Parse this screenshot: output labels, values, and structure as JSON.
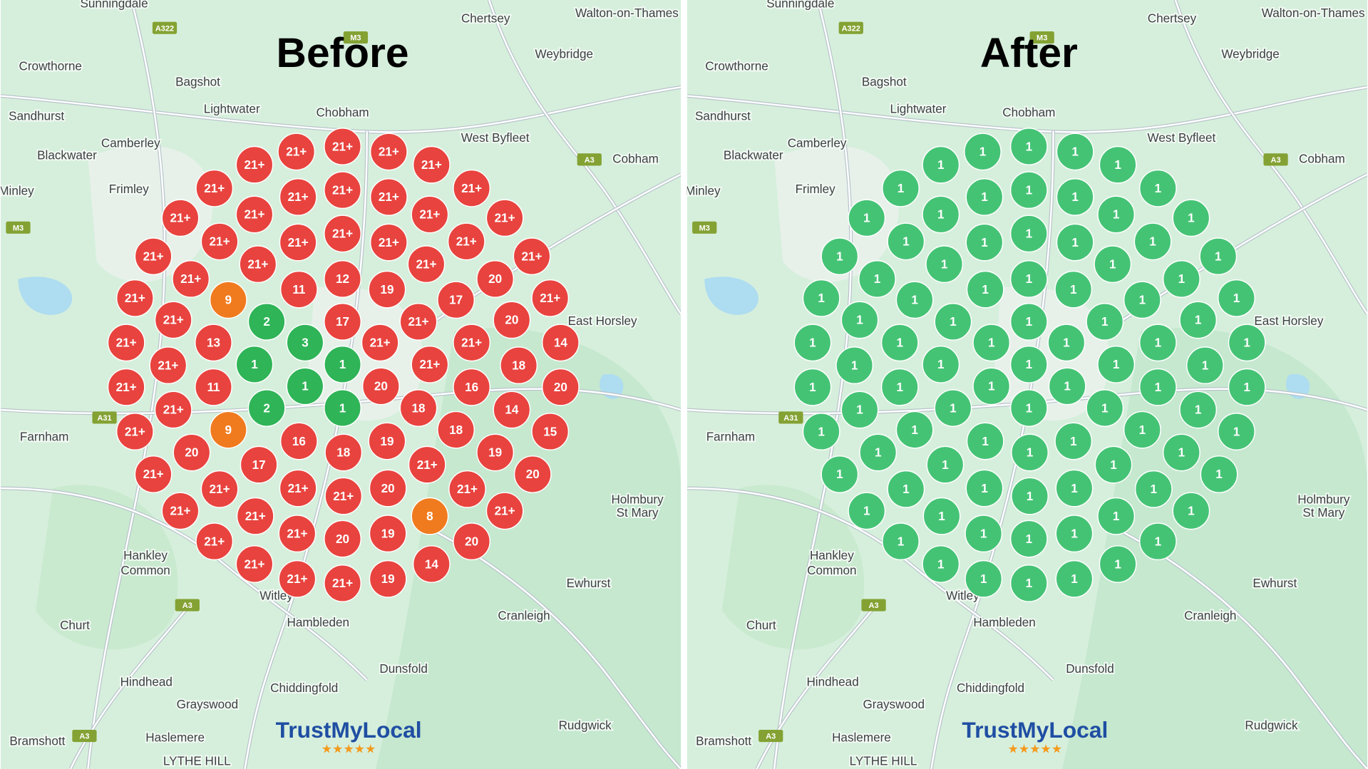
{
  "panels": [
    {
      "title": "Before",
      "markers": [
        "21+",
        "21+",
        "21+",
        "21+",
        "21+",
        "21+",
        "21+",
        "21+",
        "21+",
        "21+",
        "21+",
        "21+",
        "21+",
        "21+",
        "21+",
        "21+",
        "21+",
        "21+",
        "21+",
        "21+",
        "21+",
        "21+",
        "21+",
        "21+",
        "11",
        "12",
        "19",
        "20",
        "21+",
        "9",
        "17",
        "21+",
        "21+",
        "2",
        "17",
        "21+",
        "20",
        "21+",
        "13",
        "3",
        "21+",
        "21+",
        "14",
        "21+",
        "1",
        "1",
        "21+",
        "18",
        "21+",
        "11",
        "1",
        "20",
        "16",
        "20",
        "21+",
        "2",
        "1",
        "18",
        "14",
        "21+",
        "9",
        "18",
        "15",
        "20",
        "16",
        "18",
        "19",
        "19",
        "21+",
        "17",
        "21+",
        "20",
        "21+",
        "21+",
        "21+",
        "20",
        "21+",
        "21+",
        "21+",
        "8",
        "21+",
        "21+",
        "21+",
        "20",
        "19",
        "20",
        "21+",
        "14",
        "21+",
        "21+",
        "19"
      ],
      "marker_colors": [
        "#e8433e",
        "#e8433e",
        "#e8433e",
        "#e8433e",
        "#e8433e",
        "#e8433e",
        "#e8433e",
        "#e8433e",
        "#e8433e",
        "#e8433e",
        "#e8433e",
        "#e8433e",
        "#e8433e",
        "#e8433e",
        "#e8433e",
        "#e8433e",
        "#e8433e",
        "#e8433e",
        "#e8433e",
        "#e8433e",
        "#e8433e",
        "#e8433e",
        "#e8433e",
        "#e8433e",
        "#e8433e",
        "#e8433e",
        "#e8433e",
        "#e8433e",
        "#e8433e",
        "#f07b1e",
        "#e8433e",
        "#e8433e",
        "#e8433e",
        "#2fb457",
        "#e8433e",
        "#e8433e",
        "#e8433e",
        "#e8433e",
        "#e8433e",
        "#2fb457",
        "#e8433e",
        "#e8433e",
        "#e8433e",
        "#e8433e",
        "#2fb457",
        "#2fb457",
        "#e8433e",
        "#e8433e",
        "#e8433e",
        "#e8433e",
        "#2fb457",
        "#e8433e",
        "#e8433e",
        "#e8433e",
        "#e8433e",
        "#2fb457",
        "#2fb457",
        "#e8433e",
        "#e8433e",
        "#e8433e",
        "#f07b1e",
        "#e8433e",
        "#e8433e",
        "#e8433e",
        "#e8433e",
        "#e8433e",
        "#e8433e",
        "#e8433e",
        "#e8433e",
        "#e8433e",
        "#e8433e",
        "#e8433e",
        "#e8433e",
        "#e8433e",
        "#e8433e",
        "#e8433e",
        "#e8433e",
        "#e8433e",
        "#e8433e",
        "#f07b1e",
        "#e8433e",
        "#e8433e",
        "#e8433e",
        "#e8433e",
        "#e8433e",
        "#e8433e",
        "#e8433e",
        "#e8433e",
        "#e8433e",
        "#e8433e",
        "#e8433e"
      ]
    },
    {
      "title": "After",
      "markers": [
        "1",
        "1",
        "1",
        "1",
        "1",
        "1",
        "1",
        "1",
        "1",
        "1",
        "1",
        "1",
        "1",
        "1",
        "1",
        "1",
        "1",
        "1",
        "1",
        "1",
        "1",
        "1",
        "1",
        "1",
        "1",
        "1",
        "1",
        "1",
        "1",
        "1",
        "1",
        "1",
        "1",
        "1",
        "1",
        "1",
        "1",
        "1",
        "1",
        "1",
        "1",
        "1",
        "1",
        "1",
        "1",
        "1",
        "1",
        "1",
        "1",
        "1",
        "1",
        "1",
        "1",
        "1",
        "1",
        "1",
        "1",
        "1",
        "1",
        "1",
        "1",
        "1",
        "1",
        "1",
        "1",
        "1",
        "1",
        "1",
        "1",
        "1",
        "1",
        "1",
        "1",
        "1",
        "1",
        "1",
        "1",
        "1",
        "1",
        "1",
        "1",
        "1",
        "1",
        "1",
        "1",
        "1",
        "1",
        "1",
        "1",
        "1",
        "1"
      ],
      "marker_color": "#45c375"
    }
  ],
  "places": [
    "Sunningdale",
    "Chertsey",
    "Walton-on-Thames",
    "Crowthorne",
    "Weybridge",
    "Bagshot",
    "Lightwater",
    "Chobham",
    "Sandhurst",
    "Camberley",
    "West Byfleet",
    "Cobham",
    "Blackwater",
    "Frimley",
    "Minley",
    "East Horsley",
    "Farnham",
    "Holmbury",
    "St Mary",
    "Hankley",
    "Common",
    "Ewhurst",
    "Churt",
    "Hambleden",
    "Cranleigh",
    "Hindhead",
    "Dunsfold",
    "Chiddingfold",
    "Grayswood",
    "Rudgwick",
    "Bramshott",
    "Haslemere",
    "LYTHE HILL",
    "Witley"
  ],
  "roads": [
    "A322",
    "M3",
    "A3",
    "M3",
    "A31",
    "A3",
    "A3"
  ],
  "brand": "TrustMyLocal",
  "rating": "★★★★★"
}
